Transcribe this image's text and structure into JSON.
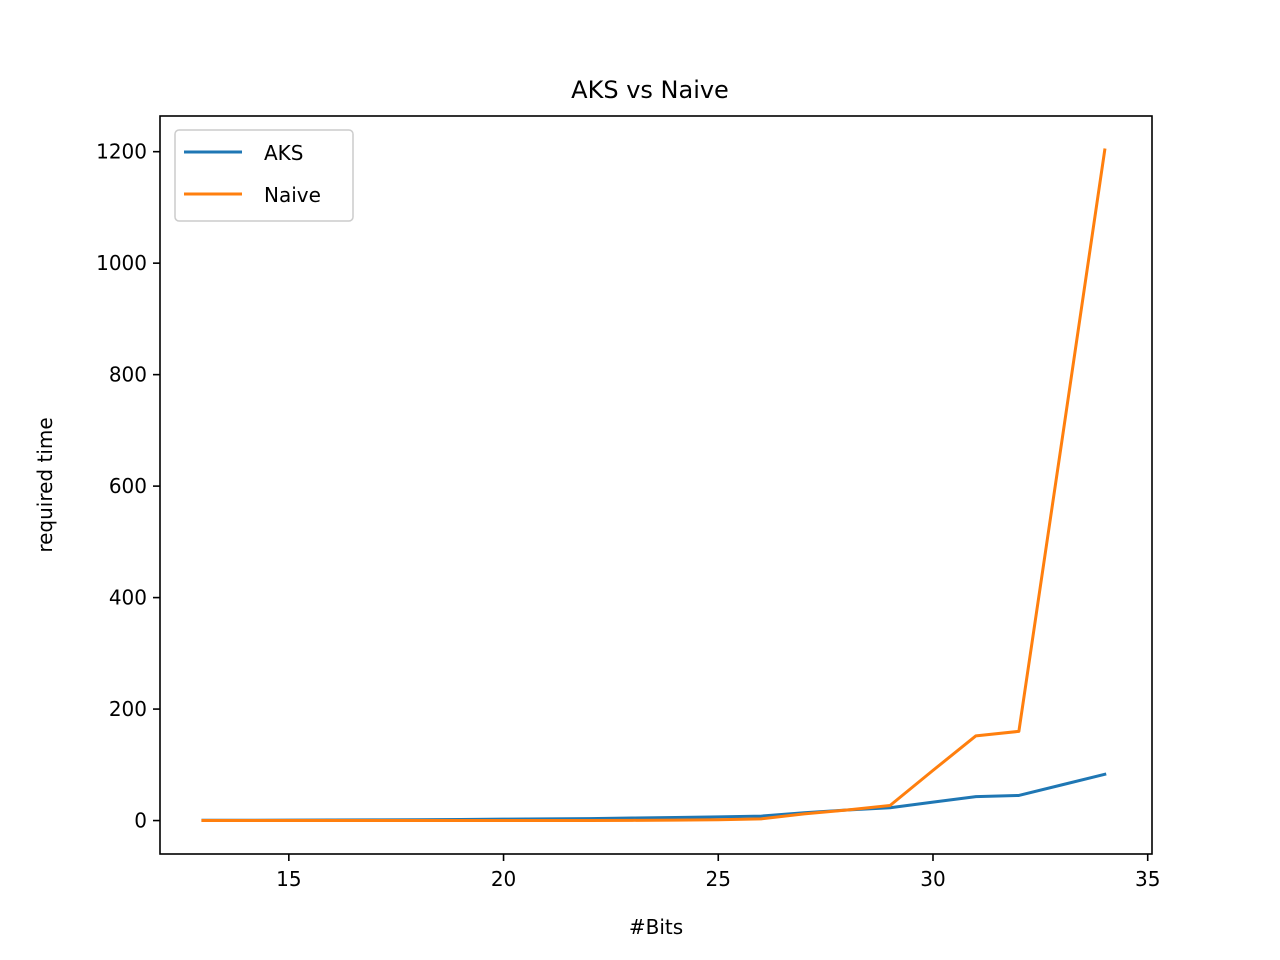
{
  "chart_data": {
    "type": "line",
    "title": "AKS vs Naive",
    "xlabel": "#Bits",
    "ylabel": "required time",
    "xlim": [
      12,
      35.1
    ],
    "ylim": [
      -60,
      1264
    ],
    "xticks": [
      15,
      20,
      25,
      30,
      35
    ],
    "yticks": [
      0,
      200,
      400,
      600,
      800,
      1000,
      1200
    ],
    "grid": false,
    "legend_position": "top-left",
    "series": [
      {
        "name": "AKS",
        "color": "#1f77b4",
        "x": [
          13,
          14,
          15,
          16,
          17,
          18,
          19,
          20,
          21,
          22,
          23,
          24,
          25,
          26,
          27,
          28,
          29,
          30,
          31,
          32,
          33,
          34
        ],
        "y": [
          0.5,
          0.6,
          0.8,
          1,
          1.2,
          1.5,
          2,
          2.5,
          3,
          3.5,
          4.5,
          5.5,
          6.5,
          8,
          14,
          19,
          23,
          33,
          43,
          45,
          64,
          83
        ]
      },
      {
        "name": "Naive",
        "color": "#ff7f0e",
        "x": [
          13,
          14,
          15,
          16,
          17,
          18,
          19,
          20,
          21,
          22,
          23,
          24,
          25,
          26,
          27,
          28,
          29,
          30,
          31,
          32,
          33,
          34
        ],
        "y": [
          0,
          0,
          0,
          0,
          0,
          0,
          0,
          0,
          0.1,
          0.2,
          0.4,
          0.8,
          1.5,
          3,
          12,
          19,
          27,
          90,
          152,
          160,
          680,
          1203
        ]
      }
    ]
  }
}
